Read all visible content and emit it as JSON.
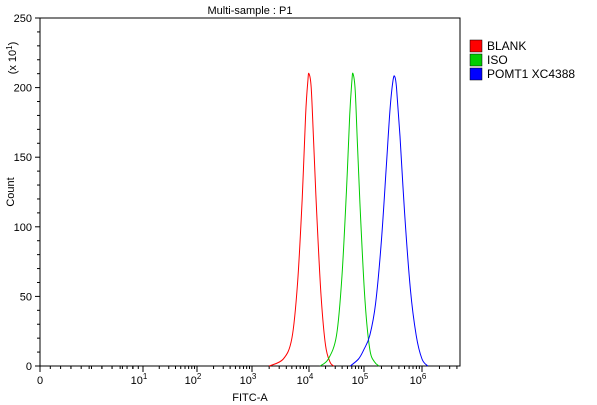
{
  "chart_data": {
    "type": "line",
    "title": "Multi-sample : P1",
    "xlabel": "FITC-A",
    "ylabel": "Count",
    "y_multiplier_label": "(x 10",
    "y_multiplier_exponent": "1",
    "x_scale": "biexponential",
    "ylim": [
      0,
      250
    ],
    "y_ticks": [
      "0",
      "50",
      "100",
      "150",
      "200",
      "250"
    ],
    "x_ticks": [
      {
        "base": "0",
        "exp": ""
      },
      {
        "base": "10",
        "exp": "1"
      },
      {
        "base": "10",
        "exp": "2"
      },
      {
        "base": "10",
        "exp": "3"
      },
      {
        "base": "10",
        "exp": "4"
      },
      {
        "base": "10",
        "exp": "5"
      },
      {
        "base": "10",
        "exp": "6"
      }
    ],
    "grid": false,
    "legend_position": "top-right",
    "series": [
      {
        "name": "BLANK",
        "color": "#ff0000",
        "x_log10": [
          3.3,
          3.55,
          3.7,
          3.8,
          3.88,
          3.94,
          3.98,
          4.0,
          4.04,
          4.08,
          4.14,
          4.22,
          4.3,
          4.38,
          4.45
        ],
        "y": [
          0,
          5,
          20,
          60,
          120,
          180,
          205,
          210,
          200,
          165,
          110,
          50,
          15,
          3,
          0
        ]
      },
      {
        "name": "ISO",
        "color": "#00cc00",
        "x_log10": [
          4.2,
          4.35,
          4.5,
          4.6,
          4.68,
          4.74,
          4.78,
          4.8,
          4.84,
          4.88,
          4.94,
          5.02,
          5.1,
          5.18,
          5.26
        ],
        "y": [
          0,
          5,
          22,
          65,
          125,
          180,
          205,
          210,
          198,
          160,
          105,
          45,
          12,
          3,
          0
        ]
      },
      {
        "name": "POMT1 XC4388",
        "color": "#0000ff",
        "x_log10": [
          4.75,
          4.9,
          5.0,
          5.1,
          5.2,
          5.3,
          5.38,
          5.45,
          5.5,
          5.53,
          5.56,
          5.62,
          5.7,
          5.8,
          5.9,
          6.0,
          6.1
        ],
        "y": [
          0,
          5,
          12,
          22,
          45,
          90,
          140,
          185,
          205,
          208,
          200,
          165,
          110,
          55,
          22,
          5,
          0
        ]
      }
    ]
  }
}
